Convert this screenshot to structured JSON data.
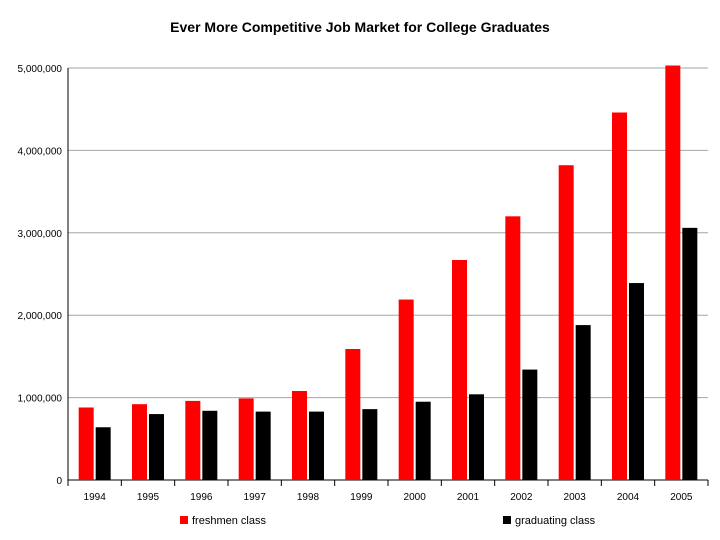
{
  "chart_data": {
    "type": "bar",
    "title": "Ever More Competitive Job Market for College Graduates",
    "xlabel": "",
    "ylabel": "",
    "categories": [
      "1994",
      "1995",
      "1996",
      "1997",
      "1998",
      "1999",
      "2000",
      "2001",
      "2002",
      "2003",
      "2004",
      "2005"
    ],
    "series": [
      {
        "name": "freshmen class",
        "color": "#ff0000",
        "values": [
          880000,
          920000,
          960000,
          990000,
          1080000,
          1590000,
          2190000,
          2670000,
          3200000,
          3820000,
          4460000,
          5030000
        ]
      },
      {
        "name": "graduating class",
        "color": "#000000",
        "values": [
          640000,
          800000,
          840000,
          830000,
          830000,
          860000,
          950000,
          1040000,
          1340000,
          1880000,
          2390000,
          3060000
        ]
      }
    ],
    "yticks": [
      "0",
      "1,000,000",
      "2,000,000",
      "3,000,000",
      "4,000,000",
      "5,000,000"
    ],
    "ylim": [
      0,
      5000000
    ],
    "grid": true,
    "legend_position": "bottom"
  }
}
